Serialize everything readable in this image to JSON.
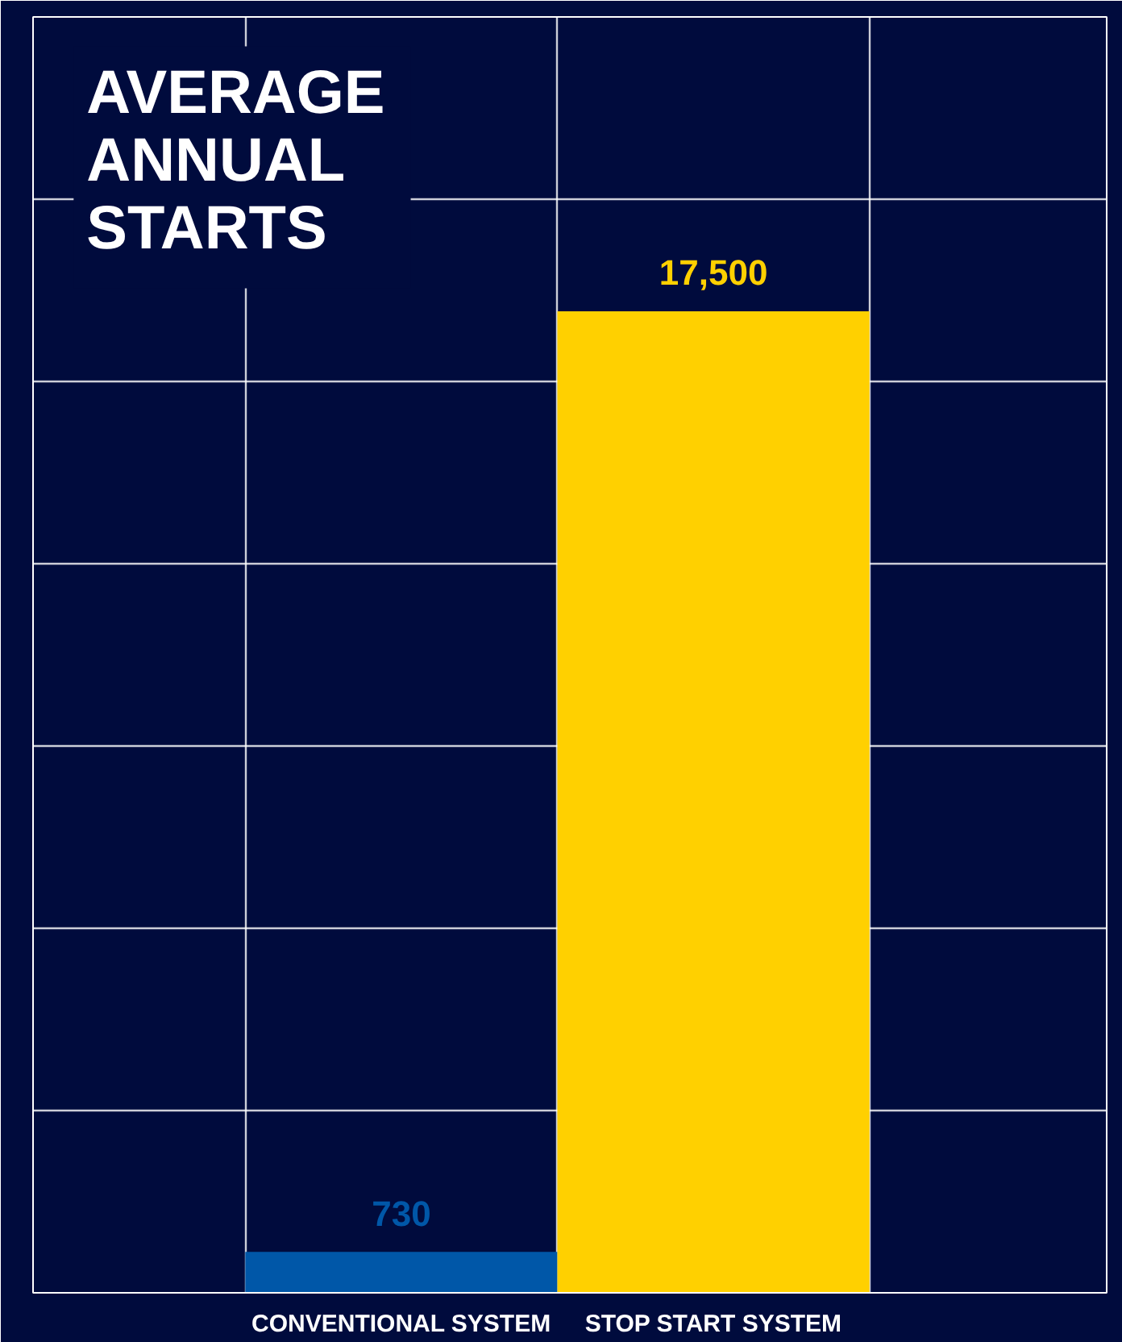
{
  "chart_data": {
    "type": "bar",
    "title": "AVERAGE ANNUAL STARTS",
    "categories": [
      "CONVENTIONAL SYSTEM",
      "STOP START SYSTEM"
    ],
    "values": [
      730,
      17500
    ],
    "colors": [
      "#0057a8",
      "#ffd000"
    ],
    "value_labels": [
      "730",
      "17,500"
    ],
    "grid": true
  }
}
